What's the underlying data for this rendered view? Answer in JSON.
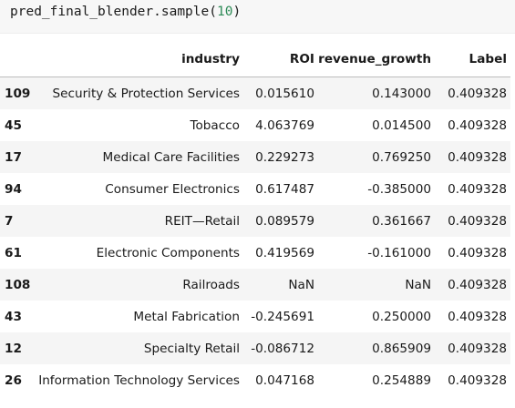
{
  "code": {
    "object": "pred_final_blender",
    "method": ".sample(",
    "arg": "10",
    "close": ")"
  },
  "table": {
    "columns": [
      "",
      "industry",
      "ROI",
      "revenue_growth",
      "Label"
    ],
    "rows": [
      {
        "index": "109",
        "industry": "Security & Protection Services",
        "ROI": "0.015610",
        "revenue_growth": "0.143000",
        "Label": "0.409328"
      },
      {
        "index": "45",
        "industry": "Tobacco",
        "ROI": "4.063769",
        "revenue_growth": "0.014500",
        "Label": "0.409328"
      },
      {
        "index": "17",
        "industry": "Medical Care Facilities",
        "ROI": "0.229273",
        "revenue_growth": "0.769250",
        "Label": "0.409328"
      },
      {
        "index": "94",
        "industry": "Consumer Electronics",
        "ROI": "0.617487",
        "revenue_growth": "-0.385000",
        "Label": "0.409328"
      },
      {
        "index": "7",
        "industry": "REIT—Retail",
        "ROI": "0.089579",
        "revenue_growth": "0.361667",
        "Label": "0.409328"
      },
      {
        "index": "61",
        "industry": "Electronic Components",
        "ROI": "0.419569",
        "revenue_growth": "-0.161000",
        "Label": "0.409328"
      },
      {
        "index": "108",
        "industry": "Railroads",
        "ROI": "NaN",
        "revenue_growth": "NaN",
        "Label": "0.409328"
      },
      {
        "index": "43",
        "industry": "Metal Fabrication",
        "ROI": "-0.245691",
        "revenue_growth": "0.250000",
        "Label": "0.409328"
      },
      {
        "index": "12",
        "industry": "Specialty Retail",
        "ROI": "-0.086712",
        "revenue_growth": "0.865909",
        "Label": "0.409328"
      },
      {
        "index": "26",
        "industry": "Information Technology Services",
        "ROI": "0.047168",
        "revenue_growth": "0.254889",
        "Label": "0.409328"
      }
    ]
  },
  "colors": {
    "code_background": "#f7f7f7",
    "number_literal": "#2e8b57",
    "row_stripe": "#f5f5f5"
  }
}
